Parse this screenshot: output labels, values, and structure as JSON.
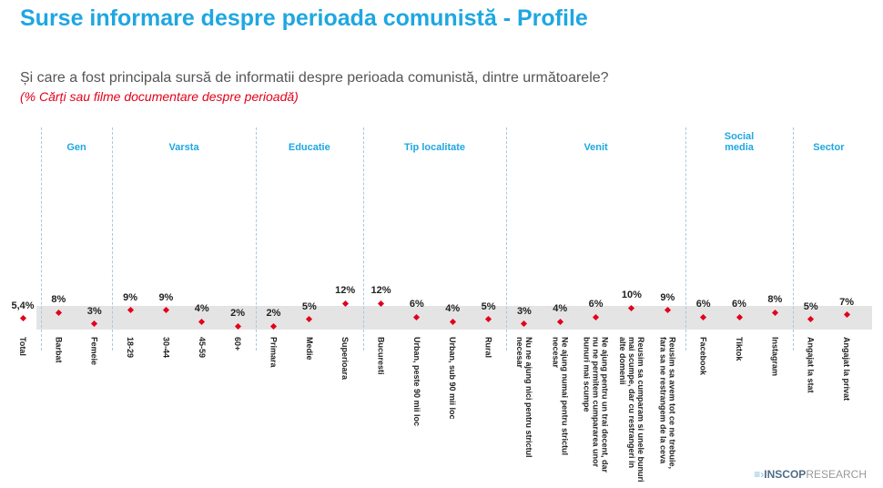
{
  "chart_data": {
    "type": "dot",
    "title": "Surse informare despre perioada comunistă - Profile",
    "subtitle": "Și care a fost principala sursă de informatii despre perioada comunistă, dintre următoarele?",
    "note": "(% Cărți sau filme documentare despre perioadă)",
    "color": "#e3001b",
    "total": {
      "category": "Total",
      "value": 5.4,
      "value_label": "5,4%"
    },
    "groups": [
      {
        "label": "Gen",
        "categories": [
          "Barbat",
          "Femeie"
        ],
        "values": [
          8,
          3
        ],
        "value_labels": [
          "8%",
          "3%"
        ]
      },
      {
        "label": "Varsta",
        "categories": [
          "18-29",
          "30-44",
          "45-59",
          "60+"
        ],
        "values": [
          9,
          9,
          4,
          2
        ],
        "value_labels": [
          "9%",
          "9%",
          "4%",
          "2%"
        ]
      },
      {
        "label": "Educatie",
        "categories": [
          "Primara",
          "Medie",
          "Superioara"
        ],
        "values": [
          2,
          5,
          12
        ],
        "value_labels": [
          "2%",
          "5%",
          "12%"
        ]
      },
      {
        "label": "Tip localitate",
        "categories": [
          "Bucuresti",
          "Urban, peste 90 mii loc",
          "Urban, sub 90 mii loc",
          "Rural"
        ],
        "values": [
          12,
          6,
          4,
          5
        ],
        "value_labels": [
          "12%",
          "6%",
          "4%",
          "5%"
        ]
      },
      {
        "label": "Venit",
        "categories": [
          "Nu ne ajung nici pentru strictul necesar",
          "Ne ajung numai pentru strictul necesar",
          "Ne ajung pentru un trai decent, dar nu ne permitem cumpararea unor bunuri mai scumpe",
          "Reusim sa cumparam si unele bunuri mai scumpe, dar cu restrangeri in alte domenii",
          "Reusim sa avem tot ce ne trebuie, fara sa ne restrangem de la ceva"
        ],
        "values": [
          3,
          4,
          6,
          10,
          9
        ],
        "value_labels": [
          "3%",
          "4%",
          "6%",
          "10%",
          "9%"
        ]
      },
      {
        "label": "Social media",
        "categories": [
          "Facebook",
          "Tiktok",
          "Instagram"
        ],
        "values": [
          6,
          6,
          8
        ],
        "value_labels": [
          "6%",
          "6%",
          "8%"
        ]
      },
      {
        "label": "Sector",
        "categories": [
          "Angajat la stat",
          "Angajat la privat"
        ],
        "values": [
          5,
          7
        ],
        "value_labels": [
          "5%",
          "7%"
        ]
      }
    ]
  },
  "brand": {
    "name": "INSCOP",
    "suffix": "RESEARCH"
  }
}
